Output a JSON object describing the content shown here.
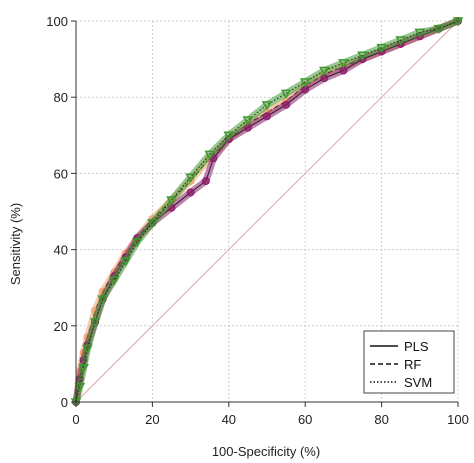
{
  "chart_data": {
    "type": "line",
    "title": "",
    "xlabel": "100-Specificity (%)",
    "ylabel": "Sensitivity (%)",
    "xlim": [
      0,
      100
    ],
    "ylim": [
      0,
      100
    ],
    "xticks": [
      0,
      20,
      40,
      60,
      80,
      100
    ],
    "yticks": [
      0,
      20,
      40,
      60,
      80,
      100
    ],
    "grid": true,
    "legend_position": "bottom-right",
    "diagonal_reference": true,
    "colors": {
      "PLS": "#8b1a6b",
      "RF": "#f2a46a",
      "SVM": "#3e9a2f",
      "diagonal": "#d8a8a8",
      "grid": "#cccccc"
    },
    "series": [
      {
        "name": "PLS",
        "line_style": "solid",
        "x": [
          0,
          1,
          2,
          3,
          5,
          7,
          10,
          13,
          16,
          20,
          25,
          30,
          34,
          36,
          40,
          45,
          50,
          55,
          60,
          65,
          70,
          75,
          80,
          85,
          90,
          95,
          100
        ],
        "y": [
          0,
          6,
          11,
          15,
          21,
          27,
          33,
          38,
          43,
          47,
          51,
          55,
          58,
          64,
          69,
          72,
          75,
          78,
          82,
          85,
          87,
          90,
          92,
          94,
          96,
          98,
          100
        ]
      },
      {
        "name": "RF",
        "line_style": "dashed",
        "x": [
          0,
          1,
          2,
          3,
          5,
          7,
          10,
          13,
          16,
          20,
          25,
          30,
          35,
          40,
          45,
          50,
          55,
          60,
          65,
          70,
          75,
          80,
          85,
          90,
          95,
          100
        ],
        "y": [
          0,
          8,
          13,
          17,
          24,
          29,
          34,
          39,
          43,
          48,
          53,
          58,
          64,
          69,
          73,
          76,
          79,
          83,
          86,
          88,
          90,
          92,
          94,
          96,
          98,
          100
        ]
      },
      {
        "name": "SVM",
        "line_style": "dotted",
        "x": [
          0,
          1,
          2,
          3,
          5,
          7,
          10,
          13,
          16,
          20,
          25,
          30,
          35,
          40,
          45,
          50,
          55,
          60,
          65,
          70,
          75,
          80,
          85,
          90,
          95,
          100
        ],
        "y": [
          0,
          4,
          9,
          14,
          21,
          27,
          32,
          37,
          42,
          47,
          53,
          59,
          65,
          70,
          74,
          78,
          81,
          84,
          87,
          89,
          91,
          93,
          95,
          97,
          98,
          100
        ]
      }
    ]
  }
}
